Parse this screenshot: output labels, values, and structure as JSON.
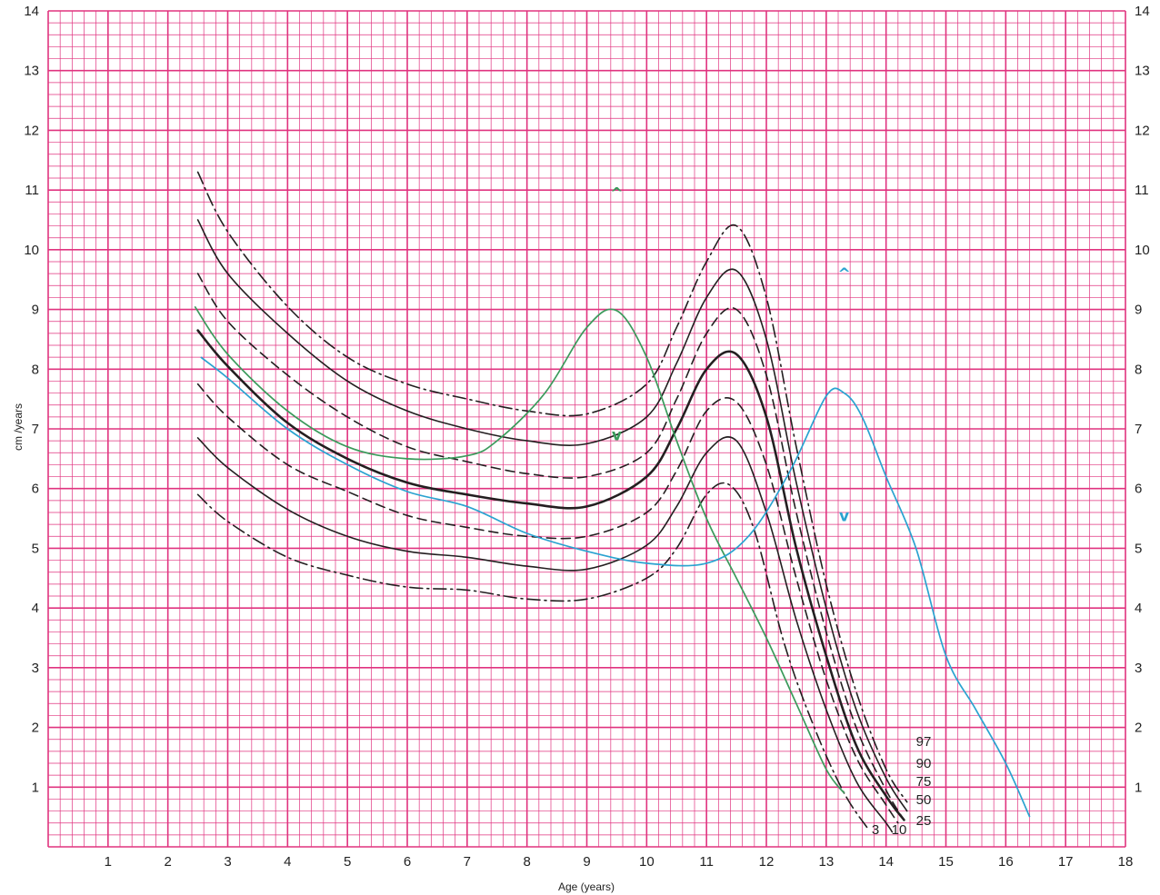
{
  "chart_data": {
    "type": "line",
    "title": "",
    "xlabel": "Age (years)",
    "ylabel": "cm /years",
    "xlim": [
      0,
      18
    ],
    "ylim": [
      0,
      14
    ],
    "x_ticks": [
      "1",
      "2",
      "3",
      "4",
      "5",
      "6",
      "7",
      "8",
      "9",
      "10",
      "11",
      "12",
      "13",
      "14",
      "15",
      "16",
      "17",
      "18"
    ],
    "y_ticks": [
      "1",
      "2",
      "3",
      "4",
      "5",
      "6",
      "7",
      "8",
      "9",
      "10",
      "11",
      "12",
      "13",
      "14"
    ],
    "grid": "major every 1 unit, minor every 0.2 unit",
    "colors": {
      "grid": "#e0337f",
      "percentile": "#231f20",
      "child_green": "#3a9a5b",
      "child_blue": "#2aa3d0"
    },
    "percentile_curves": [
      {
        "label": "97",
        "dash": "dashdot",
        "points": [
          [
            2.5,
            11.3
          ],
          [
            3,
            10.3
          ],
          [
            4,
            9.05
          ],
          [
            5,
            8.2
          ],
          [
            6,
            7.75
          ],
          [
            7,
            7.5
          ],
          [
            8,
            7.3
          ],
          [
            9,
            7.25
          ],
          [
            10,
            7.75
          ],
          [
            10.5,
            8.7
          ],
          [
            11,
            9.8
          ],
          [
            11.5,
            10.4
          ],
          [
            12,
            9.2
          ],
          [
            12.5,
            6.7
          ],
          [
            13,
            4.4
          ],
          [
            13.5,
            2.6
          ],
          [
            14,
            1.3
          ],
          [
            14.35,
            0.75
          ]
        ]
      },
      {
        "label": "90",
        "dash": "solid",
        "points": [
          [
            2.5,
            10.5
          ],
          [
            3,
            9.6
          ],
          [
            4,
            8.6
          ],
          [
            5,
            7.8
          ],
          [
            6,
            7.3
          ],
          [
            7,
            7.0
          ],
          [
            8,
            6.8
          ],
          [
            9,
            6.75
          ],
          [
            10,
            7.2
          ],
          [
            10.5,
            8.1
          ],
          [
            11,
            9.2
          ],
          [
            11.5,
            9.65
          ],
          [
            12,
            8.5
          ],
          [
            12.5,
            6.1
          ],
          [
            13,
            4.0
          ],
          [
            13.5,
            2.3
          ],
          [
            14,
            1.15
          ],
          [
            14.35,
            0.6
          ]
        ]
      },
      {
        "label": "75",
        "dash": "dashed",
        "points": [
          [
            2.5,
            9.6
          ],
          [
            3,
            8.8
          ],
          [
            4,
            7.9
          ],
          [
            5,
            7.2
          ],
          [
            6,
            6.7
          ],
          [
            7,
            6.45
          ],
          [
            8,
            6.25
          ],
          [
            9,
            6.2
          ],
          [
            10,
            6.6
          ],
          [
            10.5,
            7.5
          ],
          [
            11,
            8.6
          ],
          [
            11.5,
            9.0
          ],
          [
            12,
            7.9
          ],
          [
            12.5,
            5.6
          ],
          [
            13,
            3.6
          ],
          [
            13.5,
            2.0
          ],
          [
            14,
            0.95
          ],
          [
            14.3,
            0.45
          ]
        ]
      },
      {
        "label": "50",
        "dash": "solid-bold",
        "points": [
          [
            2.5,
            8.65
          ],
          [
            3,
            8.05
          ],
          [
            4,
            7.1
          ],
          [
            5,
            6.5
          ],
          [
            6,
            6.1
          ],
          [
            7,
            5.9
          ],
          [
            8,
            5.75
          ],
          [
            9,
            5.7
          ],
          [
            10,
            6.2
          ],
          [
            10.5,
            7.0
          ],
          [
            11,
            8.0
          ],
          [
            11.5,
            8.25
          ],
          [
            12,
            7.2
          ],
          [
            12.5,
            5.0
          ],
          [
            13,
            3.2
          ],
          [
            13.5,
            1.7
          ],
          [
            14,
            0.85
          ],
          [
            14.3,
            0.45
          ]
        ]
      },
      {
        "label": "25",
        "dash": "dashed",
        "points": [
          [
            2.5,
            7.75
          ],
          [
            3,
            7.2
          ],
          [
            4,
            6.4
          ],
          [
            5,
            5.95
          ],
          [
            6,
            5.55
          ],
          [
            7,
            5.35
          ],
          [
            8,
            5.2
          ],
          [
            9,
            5.2
          ],
          [
            10,
            5.6
          ],
          [
            10.5,
            6.3
          ],
          [
            11,
            7.3
          ],
          [
            11.5,
            7.45
          ],
          [
            12,
            6.4
          ],
          [
            12.5,
            4.5
          ],
          [
            13,
            2.8
          ],
          [
            13.5,
            1.5
          ],
          [
            14,
            0.7
          ],
          [
            14.2,
            0.4
          ]
        ]
      },
      {
        "label": "10",
        "dash": "solid",
        "points": [
          [
            2.5,
            6.85
          ],
          [
            3,
            6.35
          ],
          [
            4,
            5.65
          ],
          [
            5,
            5.2
          ],
          [
            6,
            4.95
          ],
          [
            7,
            4.85
          ],
          [
            8,
            4.7
          ],
          [
            9,
            4.65
          ],
          [
            10,
            5.05
          ],
          [
            10.5,
            5.7
          ],
          [
            11,
            6.6
          ],
          [
            11.5,
            6.8
          ],
          [
            12,
            5.6
          ],
          [
            12.5,
            3.8
          ],
          [
            13,
            2.3
          ],
          [
            13.5,
            1.1
          ],
          [
            14,
            0.4
          ],
          [
            14.1,
            0.25
          ]
        ]
      },
      {
        "label": "3",
        "dash": "dashdot",
        "points": [
          [
            2.5,
            5.9
          ],
          [
            3,
            5.45
          ],
          [
            4,
            4.85
          ],
          [
            5,
            4.55
          ],
          [
            6,
            4.35
          ],
          [
            7,
            4.3
          ],
          [
            8,
            4.15
          ],
          [
            9,
            4.15
          ],
          [
            10,
            4.5
          ],
          [
            10.5,
            5.0
          ],
          [
            11,
            5.9
          ],
          [
            11.4,
            6.05
          ],
          [
            11.8,
            5.3
          ],
          [
            12.3,
            3.4
          ],
          [
            12.8,
            2.0
          ],
          [
            13.3,
            0.9
          ],
          [
            13.7,
            0.3
          ]
        ]
      }
    ],
    "percentile_labels": [
      "97",
      "90",
      "75",
      "50",
      "25",
      "10",
      "3"
    ],
    "child_curves": [
      {
        "color": "green",
        "points": [
          [
            2.45,
            9.05
          ],
          [
            3,
            8.25
          ],
          [
            4,
            7.3
          ],
          [
            5,
            6.7
          ],
          [
            6,
            6.5
          ],
          [
            7,
            6.55
          ],
          [
            7.5,
            6.8
          ],
          [
            8.3,
            7.6
          ],
          [
            9,
            8.7
          ],
          [
            9.5,
            8.98
          ],
          [
            10,
            8.2
          ],
          [
            10.5,
            6.8
          ],
          [
            11,
            5.5
          ],
          [
            11.5,
            4.5
          ],
          [
            12,
            3.5
          ],
          [
            12.5,
            2.4
          ],
          [
            13,
            1.3
          ],
          [
            13.3,
            0.9
          ]
        ]
      },
      {
        "color": "blue",
        "points": [
          [
            2.55,
            8.2
          ],
          [
            3,
            7.85
          ],
          [
            4,
            7.0
          ],
          [
            5,
            6.4
          ],
          [
            6,
            5.95
          ],
          [
            7,
            5.7
          ],
          [
            8,
            5.25
          ],
          [
            9,
            4.95
          ],
          [
            10,
            4.75
          ],
          [
            11,
            4.75
          ],
          [
            11.7,
            5.2
          ],
          [
            12.4,
            6.3
          ],
          [
            13,
            7.55
          ],
          [
            13.3,
            7.6
          ],
          [
            13.6,
            7.2
          ],
          [
            14,
            6.2
          ],
          [
            14.5,
            5.0
          ],
          [
            15,
            3.2
          ],
          [
            15.5,
            2.3
          ],
          [
            16,
            1.4
          ],
          [
            16.4,
            0.5
          ]
        ]
      }
    ],
    "markers": [
      {
        "symbol": "^",
        "color": "green",
        "x": 9.5,
        "y": 10.95
      },
      {
        "symbol": "v",
        "color": "green",
        "x": 9.5,
        "y": 6.9
      },
      {
        "symbol": "^",
        "color": "blue",
        "x": 13.3,
        "y": 9.6
      },
      {
        "symbol": "v",
        "color": "blue",
        "x": 13.3,
        "y": 5.55
      }
    ]
  }
}
